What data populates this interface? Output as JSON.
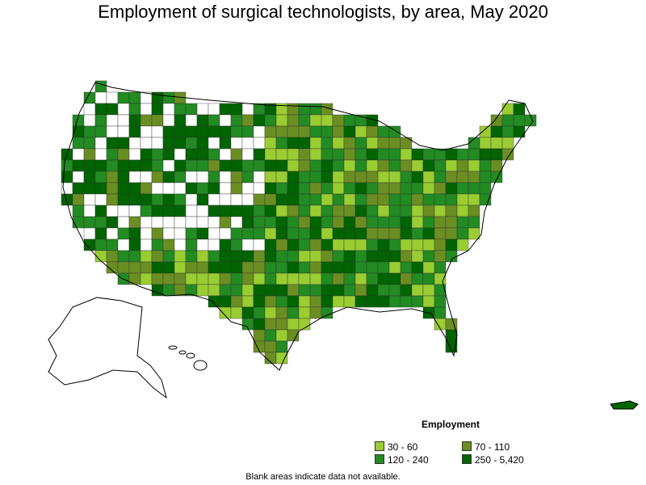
{
  "title": "Employment of surgical technologists, by area, May 2020",
  "legend": {
    "title": "Employment",
    "items": [
      {
        "label": "30 - 60",
        "color": "#9acd32"
      },
      {
        "label": "70 - 110",
        "color": "#6b8e23"
      },
      {
        "label": "120 - 240",
        "color": "#228b22"
      },
      {
        "label": "250 - 5,420",
        "color": "#006400"
      }
    ]
  },
  "footnote": "Blank areas indicate data not available.",
  "colors": {
    "blank": "#ffffff",
    "border": "#000000"
  }
}
